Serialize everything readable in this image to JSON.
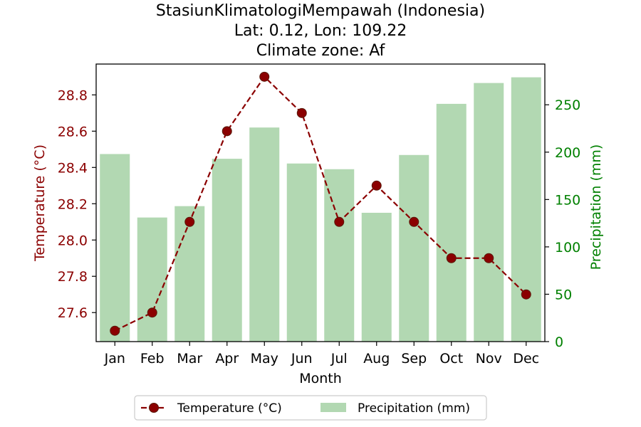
{
  "chart_data": {
    "type": "bar",
    "title_lines": [
      "StasiunKlimatologiMempawah (Indonesia)",
      "Lat: 0.12, Lon: 109.22",
      "Climate zone: Af"
    ],
    "xlabel": "Month",
    "ylabel_left": "Temperature (°C)",
    "ylabel_right": "Precipitation (mm)",
    "categories": [
      "Jan",
      "Feb",
      "Mar",
      "Apr",
      "May",
      "Jun",
      "Jul",
      "Aug",
      "Sep",
      "Oct",
      "Nov",
      "Dec"
    ],
    "series": [
      {
        "name": "Temperature (°C)",
        "type": "line",
        "axis": "left",
        "values": [
          27.5,
          27.6,
          28.1,
          28.6,
          28.9,
          28.7,
          28.1,
          28.3,
          28.1,
          27.9,
          27.9,
          27.7
        ]
      },
      {
        "name": "Precipitation (mm)",
        "type": "bar",
        "axis": "right",
        "values": [
          198,
          131,
          143,
          193,
          226,
          188,
          182,
          136,
          197,
          251,
          273,
          279
        ]
      }
    ],
    "left_axis": {
      "ylim": [
        27.44,
        28.97
      ],
      "ticks": [
        27.6,
        27.8,
        28.0,
        28.2,
        28.4,
        28.6,
        28.8
      ],
      "tick_labels": [
        "27.6",
        "27.8",
        "28.0",
        "28.2",
        "28.4",
        "28.6",
        "28.8"
      ]
    },
    "right_axis": {
      "ylim": [
        0,
        293
      ],
      "ticks": [
        0,
        50,
        100,
        150,
        200,
        250
      ],
      "tick_labels": [
        "0",
        "50",
        "100",
        "150",
        "200",
        "250"
      ]
    },
    "grid": false,
    "legend_position": "bottom-center",
    "colors": {
      "temperature": "#8b0000",
      "temperature_marker_edge": "#5a1a0a",
      "precipitation": "#b2d8b2",
      "right_axis_text": "#008000"
    }
  }
}
